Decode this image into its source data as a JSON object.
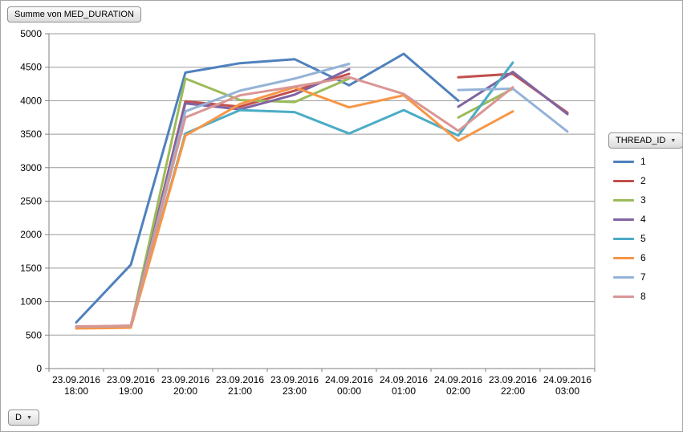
{
  "window": {
    "background": "#ffffff",
    "border_color": "#a6a6a6"
  },
  "pivot_buttons": {
    "value_field": "Summe von MED_DURATION",
    "legend_field": "THREAD_ID",
    "axis_field": "D",
    "dropdown_arrow": "▼"
  },
  "chart_data": {
    "type": "line",
    "title": "Summe von MED_DURATION",
    "legend_title": "THREAD_ID",
    "legend_position": "right",
    "grid": "horizontal",
    "ylim": [
      0,
      5000
    ],
    "ytick_step": 500,
    "ytick_labels": [
      "0",
      "500",
      "1000",
      "1500",
      "2000",
      "2500",
      "3000",
      "3500",
      "4000",
      "4500",
      "5000"
    ],
    "axis_color": "#808080",
    "grid_color": "#9a9a9a",
    "line_width": 3,
    "categories": [
      "23.09.2016 18:00",
      "23.09.2016 19:00",
      "23.09.2016 20:00",
      "23.09.2016 21:00",
      "23.09.2016 23:00",
      "24.09.2016 00:00",
      "24.09.2016 01:00",
      "24.09.2016 02:00",
      "23.09.2016 22:00",
      "24.09.2016 03:00"
    ],
    "series": [
      {
        "name": "1",
        "color": "#4F81BD",
        "values": [
          690,
          1550,
          4420,
          4560,
          4620,
          4230,
          4700,
          4000,
          null,
          null
        ]
      },
      {
        "name": "2",
        "color": "#C0504D",
        "values": [
          620,
          640,
          3990,
          3910,
          4150,
          4400,
          null,
          4350,
          4400,
          3820
        ]
      },
      {
        "name": "3",
        "color": "#9BBB59",
        "values": [
          615,
          630,
          4330,
          4010,
          3980,
          4330,
          null,
          3750,
          4180,
          null
        ]
      },
      {
        "name": "4",
        "color": "#8064A2",
        "values": [
          610,
          625,
          3960,
          3870,
          4090,
          4470,
          null,
          3910,
          4430,
          3800
        ]
      },
      {
        "name": "5",
        "color": "#4BACC6",
        "values": [
          620,
          618,
          3510,
          3860,
          3830,
          3510,
          3860,
          3480,
          4570,
          null
        ]
      },
      {
        "name": "6",
        "color": "#F79646",
        "values": [
          600,
          610,
          3480,
          3950,
          4200,
          3900,
          4080,
          3400,
          3840,
          null
        ]
      },
      {
        "name": "7",
        "color": "#95B3D7",
        "values": [
          625,
          635,
          3840,
          4150,
          4330,
          4550,
          null,
          4160,
          4180,
          3540
        ]
      },
      {
        "name": "8",
        "color": "#D99694",
        "values": [
          630,
          640,
          3750,
          4080,
          4210,
          4350,
          4100,
          3550,
          4200,
          null
        ]
      }
    ]
  }
}
